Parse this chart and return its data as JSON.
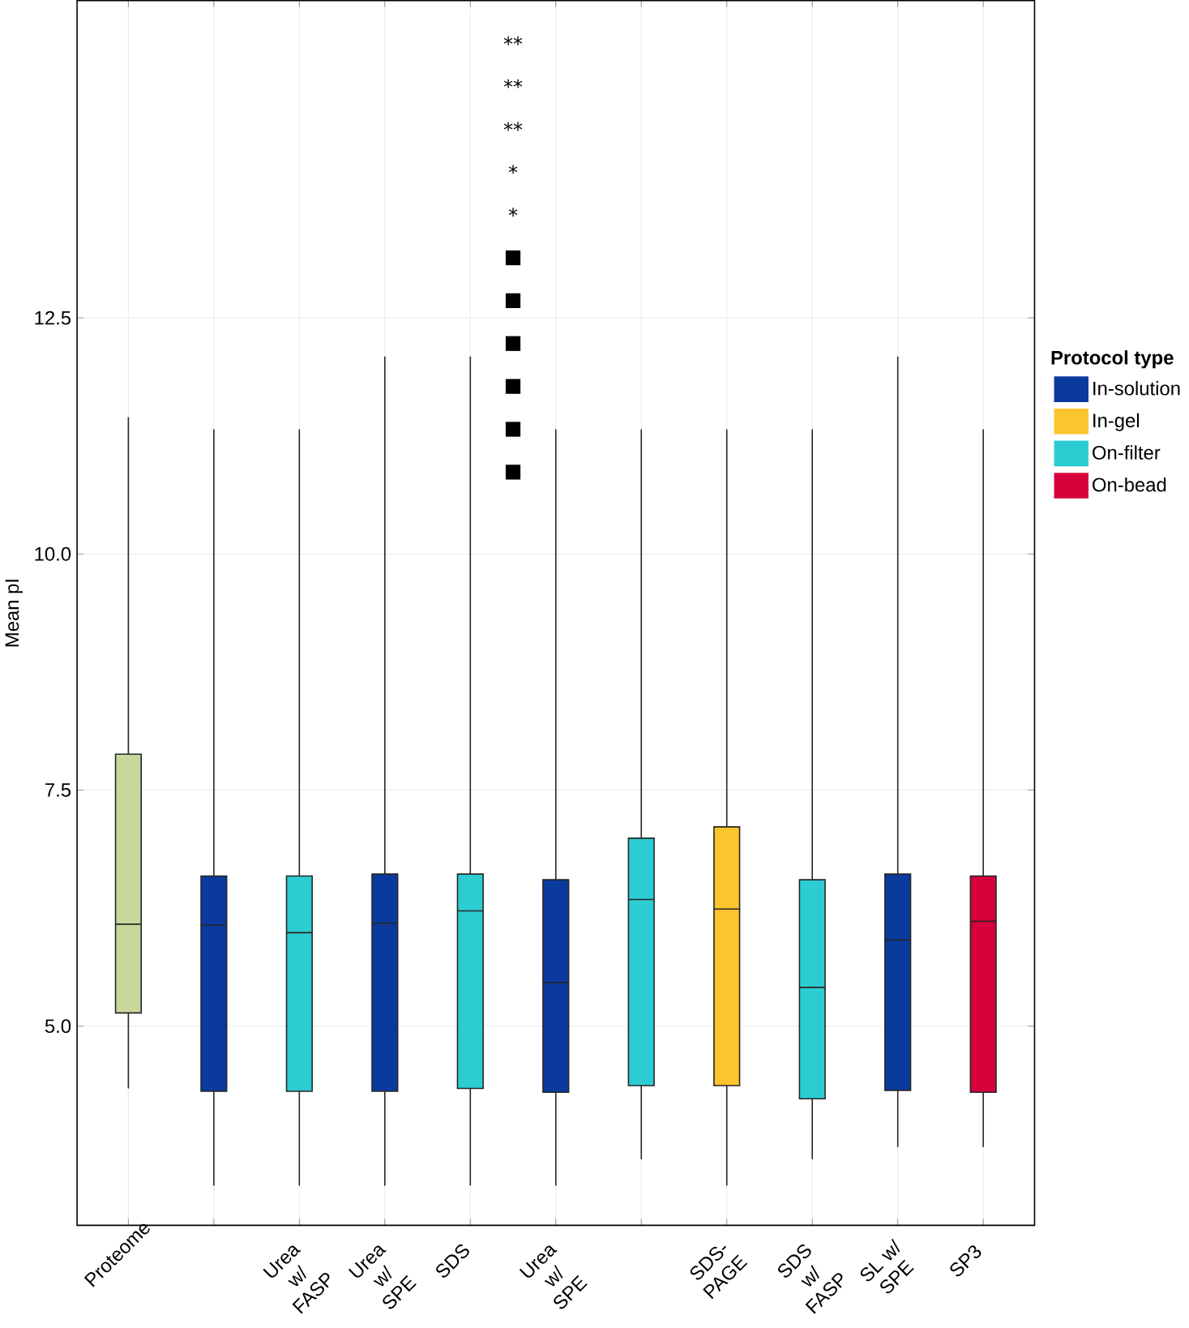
{
  "chart_data": {
    "type": "box",
    "ylabel": "Mean pI",
    "categories": [
      "Proteome",
      null,
      "Urea w/ FASP",
      "Urea w/ SPE",
      "SDS",
      "Urea w/ SPE",
      null,
      "SDS-PAGE",
      "SDS w/ FASP",
      "SL w/ SPE",
      "SP3"
    ],
    "ylim": [
      2.89,
      15.86
    ],
    "yticks": [
      {
        "value": 5,
        "label": "5.0"
      },
      7.5,
      {
        "value": 10,
        "label": "10.0"
      },
      12.5
    ],
    "grid": true,
    "legend": "right",
    "legend_title": "Protocol type",
    "series": [
      {
        "color": "#c8d89a",
        "boxes": [
          {
            "low": 4.34,
            "q1": 5.14,
            "median": 6.08,
            "q3": 7.88,
            "high": 11.45
          },
          null,
          null,
          null,
          null,
          null,
          null,
          null,
          null,
          null,
          null
        ]
      },
      {
        "name": "In-solution",
        "color": "#0a3a9e",
        "boxes": [
          null,
          {
            "low": 3.31,
            "q1": 4.31,
            "median": 6.07,
            "q3": 6.59,
            "high": 11.32
          },
          null,
          {
            "low": 3.31,
            "q1": 4.31,
            "median": 6.09,
            "q3": 6.61,
            "high": 12.09
          },
          null,
          {
            "low": 3.31,
            "q1": 4.3,
            "median": 5.46,
            "q3": 6.55,
            "high": 11.32
          },
          null,
          null,
          null,
          {
            "low": 3.72,
            "q1": 4.32,
            "median": 5.91,
            "q3": 6.61,
            "high": 12.09
          },
          null
        ]
      },
      {
        "name": "In-gel",
        "color": "#fcc42d",
        "boxes": [
          null,
          null,
          null,
          null,
          null,
          null,
          null,
          {
            "low": 3.31,
            "q1": 4.37,
            "median": 6.24,
            "q3": 7.11,
            "high": 11.32
          },
          null,
          null,
          null
        ]
      },
      {
        "name": "On-filter",
        "color": "#2ccdd2",
        "boxes": [
          null,
          null,
          {
            "low": 3.31,
            "q1": 4.31,
            "median": 5.99,
            "q3": 6.59,
            "high": 11.32
          },
          null,
          {
            "low": 3.31,
            "q1": 4.34,
            "median": 6.22,
            "q3": 6.61,
            "high": 12.09
          },
          null,
          {
            "low": 3.59,
            "q1": 4.37,
            "median": 6.34,
            "q3": 6.99,
            "high": 11.32
          },
          null,
          {
            "low": 3.59,
            "q1": 4.23,
            "median": 5.41,
            "q3": 6.55,
            "high": 11.32
          },
          null,
          null
        ]
      },
      {
        "name": "On-bead",
        "color": "#d6003a",
        "boxes": [
          null,
          null,
          null,
          null,
          null,
          null,
          null,
          null,
          null,
          null,
          {
            "low": 3.72,
            "q1": 4.3,
            "median": 6.11,
            "q3": 6.59,
            "high": 11.32
          }
        ]
      }
    ],
    "annotations": [
      "**",
      "**",
      "**",
      "*",
      "*",
      "■",
      "■",
      "■",
      "■",
      "■",
      "■"
    ]
  }
}
